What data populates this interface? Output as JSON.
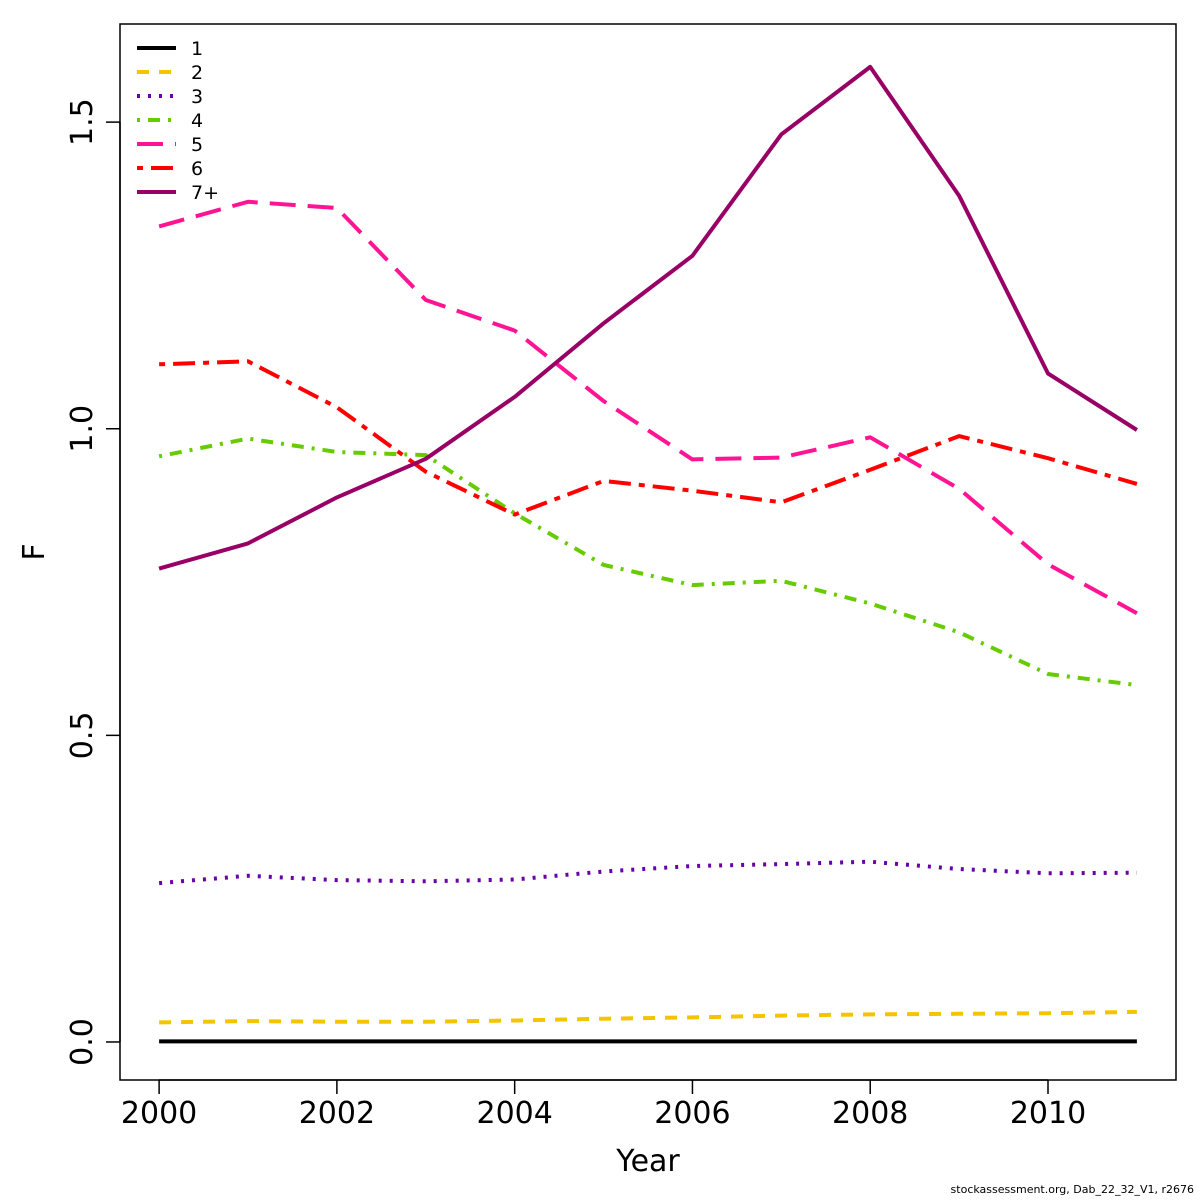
{
  "chart_data": {
    "type": "line",
    "xlabel": "Year",
    "ylabel": "F",
    "xlim": [
      1999.56,
      2011.44
    ],
    "ylim": [
      -0.062,
      1.66
    ],
    "x_ticks": [
      2000,
      2002,
      2004,
      2006,
      2008,
      2010
    ],
    "y_ticks": [
      0.0,
      0.5,
      1.0,
      1.5
    ],
    "y_tick_labels": [
      "0.0",
      "0.5",
      "1.0",
      "1.5"
    ],
    "x_tick_labels": [
      "2000",
      "2002",
      "2004",
      "2006",
      "2008",
      "2010"
    ],
    "grid": false,
    "legend_position": "top-left",
    "x": [
      2000,
      2001,
      2002,
      2003,
      2004,
      2005,
      2006,
      2007,
      2008,
      2009,
      2010,
      2011
    ],
    "series": [
      {
        "name": "1",
        "color": "#000000",
        "dash": "solid",
        "values": [
          0.001,
          0.001,
          0.001,
          0.001,
          0.001,
          0.001,
          0.001,
          0.001,
          0.001,
          0.001,
          0.001,
          0.001
        ]
      },
      {
        "name": "2",
        "color": "#F5C400",
        "dash": "dashed",
        "values": [
          0.032,
          0.034,
          0.033,
          0.033,
          0.035,
          0.038,
          0.04,
          0.043,
          0.045,
          0.046,
          0.047,
          0.049
        ]
      },
      {
        "name": "3",
        "color": "#6A00A8",
        "dash": "dotted",
        "values": [
          0.259,
          0.271,
          0.264,
          0.262,
          0.265,
          0.278,
          0.287,
          0.29,
          0.294,
          0.282,
          0.275,
          0.276
        ]
      },
      {
        "name": "4",
        "color": "#66CC00",
        "dash": "dotdash",
        "values": [
          0.955,
          0.984,
          0.962,
          0.957,
          0.862,
          0.778,
          0.745,
          0.752,
          0.715,
          0.668,
          0.6,
          0.582
        ]
      },
      {
        "name": "5",
        "color": "#FF1493",
        "dash": "longdash",
        "values": [
          1.33,
          1.37,
          1.36,
          1.21,
          1.16,
          1.045,
          0.95,
          0.953,
          0.986,
          0.902,
          0.779,
          0.699
        ]
      },
      {
        "name": "6",
        "color": "#FF0000",
        "dash": "twodash",
        "values": [
          1.105,
          1.11,
          1.035,
          0.93,
          0.86,
          0.915,
          0.899,
          0.88,
          0.933,
          0.988,
          0.952,
          0.91
        ]
      },
      {
        "name": "7+",
        "color": "#990066",
        "dash": "solid",
        "values": [
          0.772,
          0.813,
          0.888,
          0.951,
          1.052,
          1.172,
          1.282,
          1.48,
          1.59,
          1.38,
          1.09,
          0.998
        ]
      }
    ]
  },
  "footer": "stockassessment.org, Dab_22_32_V1, r2676"
}
